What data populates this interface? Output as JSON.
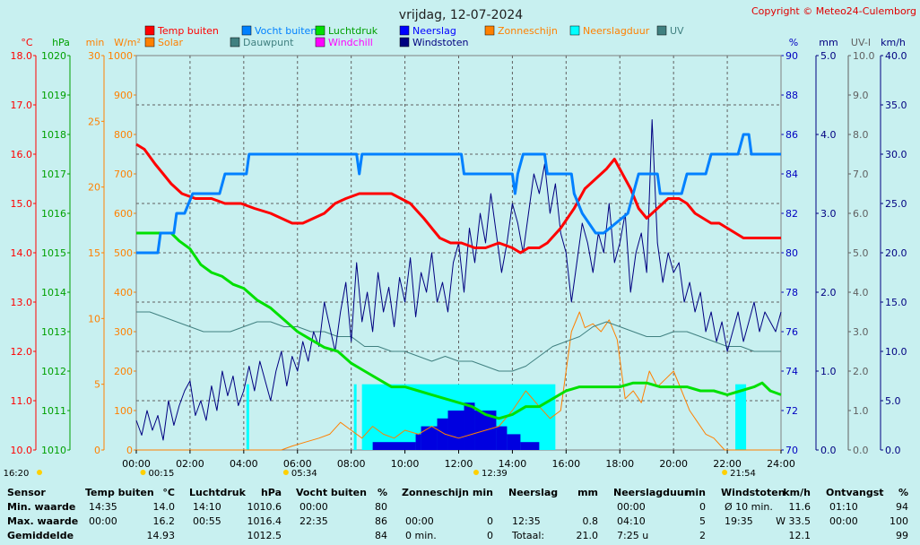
{
  "chart_data": {
    "type": "line",
    "title": "vrijdag, 12-07-2024",
    "copyright": "Copyright © Meteo24-Culemborg",
    "x_ticks": [
      "00:00",
      "02:00",
      "04:00",
      "06:00",
      "08:00",
      "10:00",
      "12:00",
      "14:00",
      "16:00",
      "18:00",
      "20:00",
      "22:00",
      "24:00"
    ],
    "left_axes": [
      {
        "unit": "°C",
        "color": "#ff0000",
        "ticks": [
          "18.0",
          "17.0",
          "16.0",
          "15.0",
          "14.0",
          "13.0",
          "12.0",
          "11.0",
          "10.0"
        ]
      },
      {
        "unit": "hPa",
        "color": "#00a000",
        "ticks": [
          "1020",
          "1019",
          "1018",
          "1017",
          "1016",
          "1015",
          "1014",
          "1013",
          "1012",
          "1011",
          "1010"
        ]
      },
      {
        "unit": "min",
        "color": "#ff8000",
        "ticks": [
          "30",
          "25",
          "20",
          "15",
          "10",
          "5",
          "0"
        ]
      },
      {
        "unit": "W/m²",
        "color": "#ff8000",
        "ticks": [
          "1000",
          "900",
          "800",
          "700",
          "600",
          "500",
          "400",
          "300",
          "200",
          "100",
          "0"
        ]
      }
    ],
    "right_axes": [
      {
        "unit": "%",
        "color": "#0000c0",
        "ticks": [
          "90",
          "88",
          "86",
          "84",
          "82",
          "80",
          "78",
          "76",
          "74",
          "72",
          "70"
        ]
      },
      {
        "unit": "mm",
        "color": "#000080",
        "ticks": [
          "5.0",
          "4.0",
          "3.0",
          "2.0",
          "1.0",
          "0.0"
        ]
      },
      {
        "unit": "UV-I",
        "color": "#606060",
        "ticks": [
          "10.0",
          "9.0",
          "8.0",
          "7.0",
          "6.0",
          "5.0",
          "4.0",
          "3.0",
          "2.0",
          "1.0",
          "0.0"
        ]
      },
      {
        "unit": "km/h",
        "color": "#000080",
        "ticks": [
          "40.0",
          "35.0",
          "30.0",
          "25.0",
          "20.0",
          "15.0",
          "10.0",
          "5.0",
          "0.0"
        ]
      }
    ],
    "legend": [
      {
        "label": "Temp buiten",
        "color": "#ff0000"
      },
      {
        "label": "Vocht buiten",
        "color": "#0080ff"
      },
      {
        "label": "Luchtdruk",
        "color": "#00e000"
      },
      {
        "label": "Neerslag",
        "color": "#0000ff"
      },
      {
        "label": "Zonneschijn",
        "color": "#ff8000"
      },
      {
        "label": "Neerslagduur",
        "color": "#00ffff"
      },
      {
        "label": "UV",
        "color": "#408080"
      },
      {
        "label": "Solar",
        "color": "#ff8000"
      },
      {
        "label": "Dauwpunt",
        "color": "#408080"
      },
      {
        "label": "Windchill",
        "color": "#ff00ff"
      },
      {
        "label": "Windstoten",
        "color": "#000080"
      }
    ],
    "time_markers": [
      {
        "label": "16:20",
        "hour": -0.3
      },
      {
        "label": "00:15",
        "hour": 0.25
      },
      {
        "label": "05:34",
        "hour": 5.57
      },
      {
        "label": "12:39",
        "hour": 12.65
      },
      {
        "label": "21:54",
        "hour": 21.9
      }
    ],
    "series": [
      {
        "name": "Temp buiten",
        "axis": "°C",
        "color": "#ff0000",
        "x": [
          0,
          0.3,
          0.7,
          1.0,
          1.3,
          1.7,
          2.2,
          2.8,
          3.3,
          3.9,
          4.4,
          5.0,
          5.4,
          5.8,
          6.2,
          6.6,
          7.0,
          7.4,
          7.8,
          8.3,
          8.8,
          9.5,
          10.2,
          10.7,
          11.0,
          11.3,
          11.7,
          12.1,
          12.6,
          13.0,
          13.5,
          14.0,
          14.3,
          14.6,
          15.0,
          15.3,
          15.8,
          16.3,
          16.7,
          17.1,
          17.5,
          17.8,
          18.1,
          18.4,
          18.7,
          19.0,
          19.4,
          19.8,
          20.2,
          20.5,
          20.8,
          21.1,
          21.4,
          21.7,
          22.0,
          22.3,
          22.6,
          23.0,
          23.5,
          24.0
        ],
        "y": [
          16.2,
          16.1,
          15.8,
          15.6,
          15.4,
          15.2,
          15.1,
          15.1,
          15.0,
          15.0,
          14.9,
          14.8,
          14.7,
          14.6,
          14.6,
          14.7,
          14.8,
          15.0,
          15.1,
          15.2,
          15.2,
          15.2,
          15.0,
          14.7,
          14.5,
          14.3,
          14.2,
          14.2,
          14.1,
          14.1,
          14.2,
          14.1,
          14.0,
          14.1,
          14.1,
          14.2,
          14.5,
          14.9,
          15.3,
          15.5,
          15.7,
          15.9,
          15.6,
          15.3,
          14.9,
          14.7,
          14.9,
          15.1,
          15.1,
          15.0,
          14.8,
          14.7,
          14.6,
          14.6,
          14.5,
          14.4,
          14.3,
          14.3,
          14.3,
          14.3
        ]
      },
      {
        "name": "Vocht buiten",
        "axis": "%",
        "color": "#0080ff",
        "x": [
          0,
          0.8,
          0.9,
          1.4,
          1.5,
          1.8,
          2.1,
          3.1,
          3.3,
          4.1,
          4.2,
          8.2,
          8.3,
          8.4,
          12.1,
          12.2,
          14.0,
          14.1,
          14.2,
          14.4,
          15.2,
          15.3,
          16.2,
          16.3,
          16.6,
          17.1,
          17.4,
          18.3,
          18.5,
          18.7,
          19.4,
          19.5,
          20.3,
          20.5,
          21.2,
          21.4,
          22.1,
          22.4,
          22.6,
          22.8,
          22.9,
          23.1,
          24.0
        ],
        "y": [
          80,
          80,
          81,
          81,
          82,
          82,
          83,
          83,
          84,
          84,
          85,
          85,
          84,
          85,
          85,
          84,
          84,
          83,
          84,
          85,
          85,
          84,
          84,
          83,
          82,
          81,
          81,
          82,
          83,
          84,
          84,
          83,
          83,
          84,
          84,
          85,
          85,
          85,
          86,
          86,
          85,
          85,
          85
        ]
      },
      {
        "name": "Luchtdruk",
        "axis": "hPa",
        "color": "#00e000",
        "x": [
          0,
          0.5,
          1.0,
          1.3,
          1.6,
          2.0,
          2.4,
          2.8,
          3.2,
          3.6,
          4.0,
          4.5,
          5.0,
          5.5,
          6.0,
          6.5,
          7.0,
          7.5,
          8.0,
          8.5,
          9.0,
          9.5,
          10.0,
          10.5,
          11.0,
          11.5,
          12.0,
          12.5,
          13.0,
          13.5,
          14.0,
          14.5,
          15.0,
          15.5,
          16.0,
          16.5,
          17.0,
          17.5,
          18.0,
          18.5,
          19.0,
          19.5,
          20.0,
          20.5,
          21.0,
          21.5,
          22.0,
          22.5,
          23.0,
          23.3,
          23.6,
          24.0
        ],
        "y": [
          1015.5,
          1015.5,
          1015.5,
          1015.5,
          1015.3,
          1015.1,
          1014.7,
          1014.5,
          1014.4,
          1014.2,
          1014.1,
          1013.8,
          1013.6,
          1013.3,
          1013.0,
          1012.8,
          1012.6,
          1012.5,
          1012.2,
          1012.0,
          1011.8,
          1011.6,
          1011.6,
          1011.5,
          1011.4,
          1011.3,
          1011.2,
          1011.1,
          1010.9,
          1010.8,
          1010.9,
          1011.1,
          1011.1,
          1011.3,
          1011.5,
          1011.6,
          1011.6,
          1011.6,
          1011.6,
          1011.7,
          1011.7,
          1011.6,
          1011.6,
          1011.6,
          1011.5,
          1011.5,
          1011.4,
          1011.5,
          1011.6,
          1011.7,
          1011.5,
          1011.4
        ]
      },
      {
        "name": "Dauwpunt",
        "axis": "°C",
        "color": "#408080",
        "x": [
          0,
          0.5,
          1.0,
          1.5,
          2.0,
          2.5,
          3.0,
          3.5,
          4.0,
          4.5,
          5.0,
          5.5,
          6.0,
          6.5,
          7.0,
          7.5,
          8.0,
          8.5,
          9.0,
          9.5,
          10.0,
          10.5,
          11.0,
          11.5,
          12.0,
          12.5,
          13.0,
          13.5,
          14.0,
          14.5,
          15.0,
          15.5,
          16.0,
          16.5,
          17.0,
          17.5,
          18.0,
          18.5,
          19.0,
          19.5,
          20.0,
          20.5,
          21.0,
          21.5,
          22.0,
          22.5,
          23.0,
          23.5,
          24.0
        ],
        "y": [
          12.8,
          12.8,
          12.7,
          12.6,
          12.5,
          12.4,
          12.4,
          12.4,
          12.5,
          12.6,
          12.6,
          12.5,
          12.5,
          12.4,
          12.4,
          12.3,
          12.3,
          12.1,
          12.1,
          12.0,
          12.0,
          11.9,
          11.8,
          11.9,
          11.8,
          11.8,
          11.7,
          11.6,
          11.6,
          11.7,
          11.9,
          12.1,
          12.2,
          12.3,
          12.5,
          12.6,
          12.5,
          12.4,
          12.3,
          12.3,
          12.4,
          12.4,
          12.3,
          12.2,
          12.1,
          12.1,
          12.0,
          12.0,
          12.0
        ]
      },
      {
        "name": "Solar",
        "axis": "W/m²",
        "color": "#ff8000",
        "x": [
          0,
          5.4,
          5.8,
          6.3,
          6.8,
          7.2,
          7.6,
          8.0,
          8.4,
          8.8,
          9.2,
          9.6,
          10.0,
          10.5,
          11.0,
          11.5,
          12.0,
          12.5,
          13.0,
          13.5,
          14.0,
          14.5,
          15.0,
          15.4,
          15.8,
          16.2,
          16.5,
          16.7,
          17.0,
          17.3,
          17.6,
          17.9,
          18.2,
          18.5,
          18.8,
          19.1,
          19.4,
          19.7,
          20.0,
          20.3,
          20.6,
          20.9,
          21.2,
          21.5,
          21.9,
          24.0
        ],
        "y": [
          0,
          0,
          10,
          20,
          30,
          40,
          70,
          50,
          30,
          60,
          40,
          30,
          50,
          40,
          60,
          40,
          30,
          40,
          50,
          60,
          100,
          150,
          110,
          80,
          100,
          300,
          350,
          310,
          320,
          300,
          330,
          280,
          130,
          150,
          120,
          200,
          160,
          180,
          200,
          150,
          100,
          70,
          40,
          30,
          0,
          0
        ]
      },
      {
        "name": "Windstoten",
        "axis": "km/h",
        "color": "#000080",
        "x": [
          0,
          0.2,
          0.4,
          0.6,
          0.8,
          1.0,
          1.2,
          1.4,
          1.6,
          1.8,
          2.0,
          2.2,
          2.4,
          2.6,
          2.8,
          3.0,
          3.2,
          3.4,
          3.6,
          3.8,
          4.0,
          4.2,
          4.4,
          4.6,
          4.8,
          5.0,
          5.2,
          5.4,
          5.6,
          5.8,
          6.0,
          6.2,
          6.4,
          6.6,
          6.8,
          7.0,
          7.2,
          7.4,
          7.6,
          7.8,
          8.0,
          8.2,
          8.4,
          8.6,
          8.8,
          9.0,
          9.2,
          9.4,
          9.6,
          9.8,
          10.0,
          10.2,
          10.4,
          10.6,
          10.8,
          11.0,
          11.2,
          11.4,
          11.6,
          11.8,
          12.0,
          12.2,
          12.4,
          12.6,
          12.8,
          13.0,
          13.2,
          13.4,
          13.6,
          13.8,
          14.0,
          14.2,
          14.4,
          14.6,
          14.8,
          15.0,
          15.2,
          15.4,
          15.6,
          15.8,
          16.0,
          16.2,
          16.4,
          16.6,
          16.8,
          17.0,
          17.2,
          17.4,
          17.6,
          17.8,
          18.0,
          18.2,
          18.4,
          18.6,
          18.8,
          19.0,
          19.2,
          19.4,
          19.6,
          19.8,
          20.0,
          20.2,
          20.4,
          20.6,
          20.8,
          21.0,
          21.2,
          21.4,
          21.6,
          21.8,
          22.0,
          22.2,
          22.4,
          22.6,
          22.8,
          23.0,
          23.2,
          23.4,
          23.6,
          23.8,
          24.0
        ],
        "y": [
          3.0,
          1.5,
          4.0,
          2.0,
          3.5,
          1.0,
          5.0,
          2.5,
          4.5,
          6.0,
          7.0,
          3.5,
          5.0,
          3.0,
          6.5,
          4.0,
          8.0,
          5.5,
          7.5,
          4.5,
          6.0,
          8.5,
          6.0,
          9.0,
          7.0,
          5.0,
          8.0,
          10.0,
          6.5,
          9.5,
          8.0,
          11.0,
          9.0,
          12.0,
          10.5,
          15.0,
          12.5,
          10.0,
          14.0,
          17.0,
          11.0,
          19.0,
          13.0,
          16.0,
          12.0,
          18.0,
          14.0,
          16.5,
          12.5,
          17.5,
          15.0,
          19.5,
          13.5,
          18.0,
          16.0,
          20.0,
          15.0,
          17.0,
          14.0,
          19.0,
          21.0,
          16.0,
          22.5,
          19.0,
          24.0,
          21.0,
          26.0,
          22.0,
          18.0,
          21.0,
          25.0,
          23.0,
          20.0,
          24.0,
          28.0,
          26.0,
          29.0,
          24.0,
          27.0,
          22.0,
          20.0,
          15.0,
          19.0,
          23.0,
          21.0,
          18.0,
          22.0,
          20.0,
          25.0,
          19.0,
          21.0,
          24.0,
          16.0,
          20.0,
          22.0,
          18.0,
          33.5,
          21.0,
          17.0,
          20.0,
          18.0,
          19.0,
          15.0,
          17.0,
          14.0,
          16.0,
          12.0,
          14.0,
          11.0,
          13.0,
          10.0,
          12.0,
          14.0,
          11.0,
          13.0,
          15.0,
          12.0,
          14.0,
          13.0,
          12.0,
          14.0
        ]
      }
    ]
  },
  "footer": {
    "headers": [
      {
        "label": "Sensor",
        "unit": ""
      },
      {
        "label": "Temp buiten",
        "unit": "°C"
      },
      {
        "label": "Luchtdruk",
        "unit": "hPa"
      },
      {
        "label": "Vocht buiten",
        "unit": "%"
      },
      {
        "label": "Zonneschijn",
        "unit": "min"
      },
      {
        "label": "Neerslag",
        "unit": "mm"
      },
      {
        "label": "Neerslagduur",
        "unit": "min"
      },
      {
        "label": "Windstoten",
        "unit": "km/h"
      },
      {
        "label": "Ontvangst",
        "unit": "%"
      }
    ],
    "rows": [
      {
        "label": "Min. waarde",
        "cells": [
          [
            "14:35",
            "14.0"
          ],
          [
            "14:10",
            "1010.6"
          ],
          [
            "00:00",
            "80"
          ],
          [
            "",
            ""
          ],
          [
            "",
            ""
          ],
          [
            "00:00",
            "0"
          ],
          [
            "Ø 10 min.",
            "11.6"
          ],
          [
            "01:10",
            "94"
          ]
        ]
      },
      {
        "label": "Max. waarde",
        "cells": [
          [
            "00:00",
            "16.2"
          ],
          [
            "00:55",
            "1016.4"
          ],
          [
            "22:35",
            "86"
          ],
          [
            "00:00",
            "0"
          ],
          [
            "12:35",
            "0.8"
          ],
          [
            "04:10",
            "5"
          ],
          [
            "19:35",
            "W 33.5"
          ],
          [
            "00:00",
            "100"
          ]
        ]
      },
      {
        "label": "Gemiddelde",
        "cells": [
          [
            "",
            "14.93"
          ],
          [
            "",
            "1012.5"
          ],
          [
            "",
            "84"
          ],
          [
            "0 min.",
            "0"
          ],
          [
            "Totaal:",
            "21.0"
          ],
          [
            "7:25 u",
            "2"
          ],
          [
            "",
            "12.1"
          ],
          [
            "",
            "99"
          ]
        ]
      }
    ]
  }
}
